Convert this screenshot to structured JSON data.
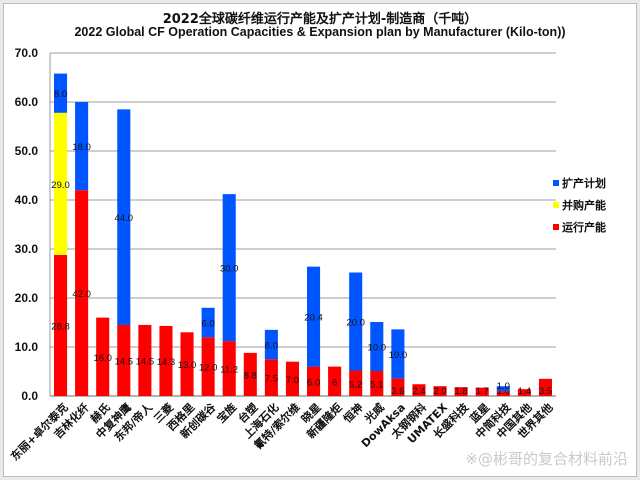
{
  "chart_data": {
    "type": "bar",
    "stacked": true,
    "title": "2022全球碳纤维运行产能及扩产计划-制造商（千吨）",
    "subtitle": "2022 Global CF Operation Capacities & Expansion plan by Manufacturer (Kilo-ton))",
    "xlabel": "",
    "ylabel": "",
    "ylim": [
      0,
      70
    ],
    "yticks": [
      "0.0",
      "10.0",
      "20.0",
      "30.0",
      "40.0",
      "50.0",
      "60.0",
      "70.0"
    ],
    "grid": true,
    "legend_position": "right",
    "categories": [
      "东丽+卓尔泰克",
      "吉林化纤",
      "赫氏",
      "中复神鹰",
      "东邦/帝人",
      "三菱",
      "西格里",
      "新创碳谷",
      "宝旌",
      "台塑",
      "上海石化",
      "氰特/索尔维",
      "晓星",
      "新疆隆炬",
      "恒神",
      "光威",
      "DowAksa",
      "太钢钢科",
      "UMATEX",
      "长盛科技",
      "蓝星",
      "中简科技",
      "中国其他",
      "世界其他"
    ],
    "series": [
      {
        "name": "运行产能",
        "color": "#ff0000",
        "values": [
          28.8,
          42.0,
          16.0,
          14.5,
          14.5,
          14.3,
          13.0,
          12.0,
          11.2,
          8.8,
          7.5,
          7.0,
          6.0,
          6,
          5.2,
          5.1,
          3.6,
          2.4,
          2.0,
          1.8,
          1.7,
          1.0,
          1.4,
          3.5
        ],
        "labels": [
          "28.8",
          "42.0",
          "16.0",
          "14.5",
          "14.5",
          "14.3",
          "13.0",
          "12.0",
          "11.2",
          "8.8",
          "7.5",
          "7.0",
          "6.0",
          "6",
          "5.2",
          "5.1",
          "3.6",
          "2.4",
          "2.0",
          "1.8",
          "1.7",
          "1.0",
          "1.4",
          "3.5"
        ]
      },
      {
        "name": "并购产能",
        "color": "#ffff00",
        "values": [
          29.0,
          0,
          0,
          0,
          0,
          0,
          0,
          0,
          0,
          0,
          0,
          0,
          0,
          0,
          0,
          0,
          0,
          0,
          0,
          0,
          0,
          0,
          0,
          0
        ],
        "labels": [
          "29.0",
          "",
          "",
          "",
          "",
          "",
          "",
          "",
          "",
          "",
          "",
          "",
          "",
          "",
          "",
          "",
          "",
          "",
          "",
          "",
          "",
          "",
          "",
          ""
        ]
      },
      {
        "name": "扩产计划",
        "color": "#0055ff",
        "values": [
          8.0,
          18.0,
          0,
          44.0,
          0,
          0,
          0,
          6.0,
          30.0,
          0,
          6.0,
          0,
          20.4,
          0,
          20.0,
          10.0,
          10.0,
          0,
          0,
          0,
          0,
          1.0,
          0,
          0
        ],
        "labels": [
          "8.0",
          "18.0",
          "",
          "44.0",
          "",
          "",
          "",
          "6.0",
          "30.0",
          "",
          "6.0",
          "",
          "20.4",
          "",
          "20.0",
          "10.0",
          "10.0",
          "",
          "",
          "",
          "",
          "1.0",
          "",
          ""
        ]
      }
    ],
    "legend": [
      {
        "label": "扩产计划",
        "color": "#0055ff"
      },
      {
        "label": "并购产能",
        "color": "#ffff00"
      },
      {
        "label": "运行产能",
        "color": "#ff0000"
      }
    ]
  },
  "watermark": "※@彬哥的复合材料前沿"
}
